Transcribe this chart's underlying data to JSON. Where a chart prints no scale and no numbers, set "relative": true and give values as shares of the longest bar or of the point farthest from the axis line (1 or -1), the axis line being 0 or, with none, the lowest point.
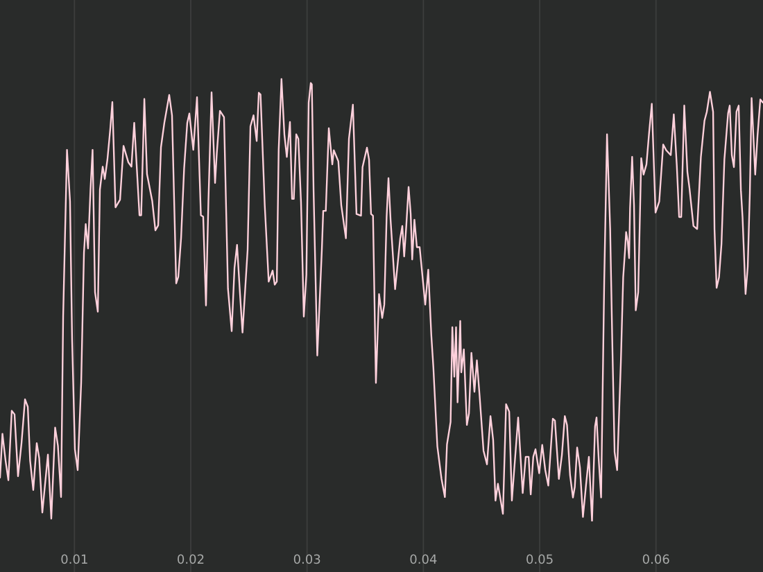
{
  "chart_data": {
    "type": "line",
    "relative": true,
    "x": [
      0.0036,
      0.00381,
      0.00408,
      0.00432,
      0.00461,
      0.00485,
      0.00515,
      0.00545,
      0.00575,
      0.00599,
      0.00619,
      0.00646,
      0.00676,
      0.00697,
      0.00724,
      0.00772,
      0.00801,
      0.00834,
      0.00858,
      0.00885,
      0.00903,
      0.00936,
      0.00962,
      0.0098,
      0.01004,
      0.01028,
      0.01058,
      0.01082,
      0.01097,
      0.01117,
      0.01138,
      0.01156,
      0.01177,
      0.01201,
      0.01219,
      0.01243,
      0.01261,
      0.01284,
      0.01308,
      0.01326,
      0.01353,
      0.01392,
      0.01422,
      0.01463,
      0.0149,
      0.01514,
      0.01532,
      0.01559,
      0.01574,
      0.01601,
      0.01624,
      0.01669,
      0.01696,
      0.0172,
      0.01744,
      0.01773,
      0.01815,
      0.01839,
      0.01875,
      0.01893,
      0.01917,
      0.01943,
      0.0197,
      0.01988,
      0.02022,
      0.02054,
      0.02087,
      0.02107,
      0.02131,
      0.02152,
      0.02179,
      0.02209,
      0.02224,
      0.02251,
      0.02286,
      0.0232,
      0.02352,
      0.02376,
      0.02398,
      0.02424,
      0.02445,
      0.02489,
      0.02513,
      0.0254,
      0.02567,
      0.02585,
      0.026,
      0.02636,
      0.0267,
      0.02704,
      0.02722,
      0.0274,
      0.02756,
      0.0278,
      0.02805,
      0.02826,
      0.02853,
      0.02871,
      0.02886,
      0.02907,
      0.02925,
      0.02948,
      0.02972,
      0.02994,
      0.03014,
      0.03032,
      0.03041,
      0.03056,
      0.03088,
      0.03127,
      0.03139,
      0.03161,
      0.03187,
      0.03217,
      0.0323,
      0.03269,
      0.03294,
      0.03334,
      0.0336,
      0.03394,
      0.03425,
      0.03464,
      0.03477,
      0.03515,
      0.03533,
      0.0355,
      0.03567,
      0.03592,
      0.03619,
      0.03646,
      0.03664,
      0.03684,
      0.037,
      0.03718,
      0.03757,
      0.03775,
      0.03801,
      0.03819,
      0.03835,
      0.03853,
      0.03873,
      0.03891,
      0.03904,
      0.03923,
      0.03944,
      0.03968,
      0.04016,
      0.04042,
      0.04068,
      0.04086,
      0.0412,
      0.04156,
      0.04185,
      0.04203,
      0.04234,
      0.04249,
      0.04266,
      0.04281,
      0.04294,
      0.04317,
      0.04326,
      0.04348,
      0.04374,
      0.04392,
      0.04413,
      0.04439,
      0.0446,
      0.04483,
      0.04517,
      0.04547,
      0.04577,
      0.046,
      0.0462,
      0.04641,
      0.04684,
      0.04711,
      0.04738,
      0.04761,
      0.04815,
      0.04854,
      0.0488,
      0.04905,
      0.04923,
      0.04945,
      0.04964,
      0.04996,
      0.05022,
      0.05048,
      0.05074,
      0.05113,
      0.05131,
      0.05165,
      0.05191,
      0.05216,
      0.05235,
      0.05261,
      0.05286,
      0.05302,
      0.05322,
      0.05346,
      0.05372,
      0.05398,
      0.05423,
      0.0545,
      0.05476,
      0.05489,
      0.05507,
      0.05528,
      0.05555,
      0.05579,
      0.05606,
      0.05624,
      0.05644,
      0.05666,
      0.05698,
      0.05718,
      0.05734,
      0.05743,
      0.05757,
      0.05769,
      0.05777,
      0.05795,
      0.05811,
      0.05826,
      0.05847,
      0.05873,
      0.05893,
      0.05918,
      0.05941,
      0.05964,
      0.05996,
      0.06028,
      0.06062,
      0.06088,
      0.06127,
      0.06153,
      0.06179,
      0.06199,
      0.06217,
      0.06243,
      0.0627,
      0.06288,
      0.06322,
      0.06354,
      0.06386,
      0.06417,
      0.06437,
      0.06464,
      0.06491,
      0.06503,
      0.06521,
      0.06542,
      0.06563,
      0.06588,
      0.0662,
      0.06634,
      0.06652,
      0.0667,
      0.06692,
      0.06711,
      0.0673,
      0.06744,
      0.0677,
      0.06789,
      0.06807,
      0.06822,
      0.06853,
      0.06873,
      0.06897,
      0.06918
    ],
    "series": [
      {
        "color": "#ffd1dc",
        "values": [
          0.099,
          0.198,
          0.137,
          0.093,
          0.25,
          0.242,
          0.102,
          0.177,
          0.276,
          0.259,
          0.137,
          0.071,
          0.177,
          0.143,
          0.02,
          0.151,
          0.006,
          0.212,
          0.171,
          0.055,
          0.464,
          0.84,
          0.724,
          0.41,
          0.163,
          0.116,
          0.314,
          0.608,
          0.672,
          0.617,
          0.75,
          0.84,
          0.518,
          0.474,
          0.75,
          0.802,
          0.774,
          0.819,
          0.887,
          0.948,
          0.71,
          0.727,
          0.849,
          0.812,
          0.802,
          0.901,
          0.819,
          0.692,
          0.692,
          0.955,
          0.785,
          0.724,
          0.658,
          0.669,
          0.846,
          0.901,
          0.964,
          0.918,
          0.538,
          0.553,
          0.641,
          0.798,
          0.901,
          0.922,
          0.84,
          0.959,
          0.692,
          0.689,
          0.488,
          0.724,
          0.97,
          0.765,
          0.832,
          0.928,
          0.914,
          0.526,
          0.43,
          0.573,
          0.625,
          0.512,
          0.427,
          0.614,
          0.893,
          0.918,
          0.86,
          0.969,
          0.965,
          0.716,
          0.542,
          0.567,
          0.535,
          0.542,
          0.84,
          1.0,
          0.875,
          0.824,
          0.903,
          0.729,
          0.729,
          0.875,
          0.865,
          0.722,
          0.463,
          0.558,
          0.947,
          0.991,
          0.988,
          0.749,
          0.375,
          0.613,
          0.702,
          0.702,
          0.889,
          0.807,
          0.839,
          0.814,
          0.715,
          0.64,
          0.865,
          0.942,
          0.695,
          0.691,
          0.801,
          0.845,
          0.818,
          0.695,
          0.691,
          0.313,
          0.514,
          0.46,
          0.49,
          0.688,
          0.776,
          0.682,
          0.525,
          0.572,
          0.64,
          0.668,
          0.599,
          0.668,
          0.756,
          0.695,
          0.592,
          0.682,
          0.62,
          0.62,
          0.49,
          0.569,
          0.422,
          0.348,
          0.17,
          0.096,
          0.055,
          0.174,
          0.225,
          0.439,
          0.327,
          0.439,
          0.269,
          0.453,
          0.337,
          0.389,
          0.218,
          0.244,
          0.381,
          0.293,
          0.364,
          0.286,
          0.16,
          0.129,
          0.238,
          0.184,
          0.047,
          0.085,
          0.017,
          0.265,
          0.248,
          0.047,
          0.235,
          0.064,
          0.146,
          0.146,
          0.061,
          0.146,
          0.163,
          0.109,
          0.173,
          0.116,
          0.081,
          0.232,
          0.228,
          0.096,
          0.15,
          0.238,
          0.218,
          0.105,
          0.054,
          0.078,
          0.167,
          0.122,
          0.01,
          0.081,
          0.146,
          0.0,
          0.215,
          0.235,
          0.143,
          0.054,
          0.545,
          0.875,
          0.661,
          0.409,
          0.157,
          0.116,
          0.361,
          0.552,
          0.613,
          0.654,
          0.633,
          0.595,
          0.708,
          0.824,
          0.715,
          0.477,
          0.518,
          0.821,
          0.784,
          0.807,
          0.879,
          0.944,
          0.698,
          0.723,
          0.852,
          0.839,
          0.828,
          0.92,
          0.804,
          0.688,
          0.688,
          0.94,
          0.79,
          0.753,
          0.668,
          0.661,
          0.824,
          0.906,
          0.926,
          0.971,
          0.926,
          0.661,
          0.528,
          0.552,
          0.627,
          0.818,
          0.923,
          0.94,
          0.828,
          0.801,
          0.926,
          0.94,
          0.749,
          0.688,
          0.514,
          0.576,
          0.743,
          0.957,
          0.784,
          0.872,
          0.954,
          0.947
        ]
      }
    ],
    "xlim": [
      0.0036,
      0.0692
    ],
    "xticks": [
      0.01,
      0.02,
      0.03,
      0.04,
      0.05,
      0.06
    ],
    "grid": "x",
    "tick_labels": "x",
    "line_style": "solid"
  }
}
